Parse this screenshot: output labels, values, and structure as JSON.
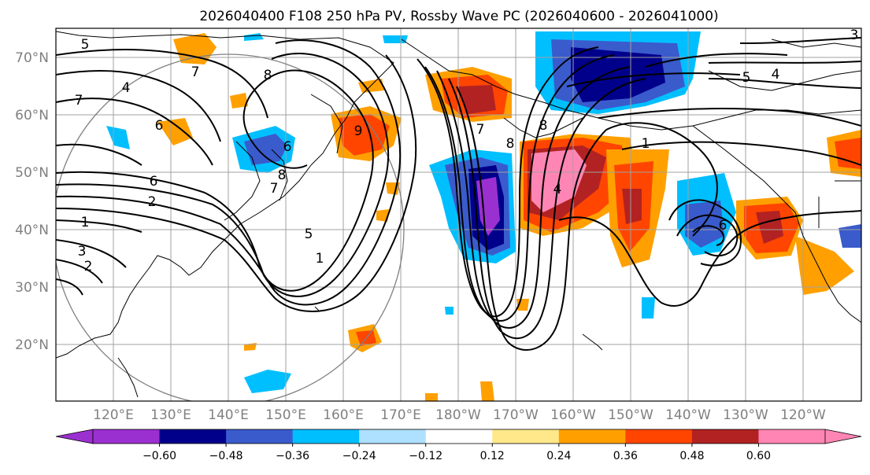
{
  "title": "2026040400 F108 250 hPa PV, Rossby Wave PC (2026040600 - 2026041000)",
  "lat_labels": [
    "70°N",
    "60°N",
    "50°N",
    "40°N",
    "30°N",
    "20°N"
  ],
  "lon_labels": [
    "120°E",
    "130°E",
    "140°E",
    "150°E",
    "160°E",
    "170°E",
    "180°W",
    "170°W",
    "160°W",
    "150°W",
    "140°W",
    "130°W",
    "120°W"
  ],
  "colorbar": {
    "tick_labels": [
      "−0.60",
      "−0.48",
      "−0.36",
      "−0.24",
      "−0.12",
      "0.12",
      "0.24",
      "0.36",
      "0.48",
      "0.60"
    ],
    "colors": [
      "#9b30d0",
      "#00008b",
      "#3a5bcc",
      "#00bfff",
      "#aee0ff",
      "#ffffff",
      "#ffe88a",
      "#ffa000",
      "#ff4500",
      "#b22222",
      "#ff86b4"
    ],
    "extend": "both"
  },
  "contour_labels": [
    "5",
    "7",
    "4",
    "7",
    "6",
    "8",
    "6",
    "8",
    "7",
    "6",
    "2",
    "1",
    "3",
    "2",
    "5",
    "1",
    "9",
    "8",
    "4",
    "1",
    "5",
    "4",
    "3",
    "6",
    "8",
    "7"
  ],
  "map": {
    "projection": "PlateCarree",
    "lat_range": [
      10,
      75
    ],
    "lon_range": [
      110,
      250
    ],
    "field": "250 hPa PV contours with Rossby Wave PC shading"
  },
  "colors": {
    "grid": "#a0a0a0",
    "coast": "#000000",
    "circle": "#808080"
  }
}
